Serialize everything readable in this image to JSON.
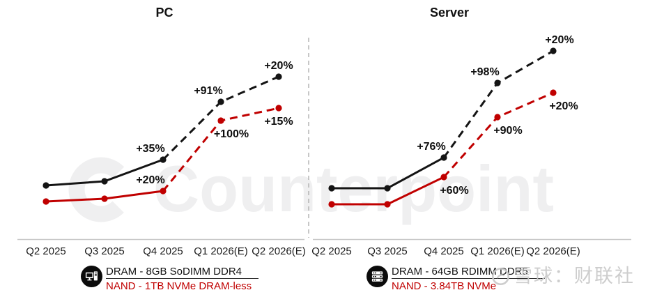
{
  "colors": {
    "dram_black": "#141414",
    "nand_red": "#c00000",
    "annotation_text": "#0e0e0e",
    "axis_line": "#c8c8c8",
    "divider_dash": "#a9a9a9",
    "watermark_center": "#efeff0",
    "watermark_bottom_right": "#c9c9c9"
  },
  "chart_data": [
    {
      "type": "line",
      "title": "PC",
      "x_labels": [
        "Q2 2025",
        "Q3 2025",
        "Q4 2025",
        "Q1 2026(E)",
        "Q2 2026(E)"
      ],
      "solid_until_index": 2,
      "estimate_quarters": [
        "Q1 2026(E)",
        "Q2 2026(E)"
      ],
      "legend_note": "grid off, no y-axis; levels are relative price-index heights read from the figure",
      "series": [
        {
          "name": "DRAM - 8GB SoDIMM DDR4",
          "color": "#141414",
          "levels": [
            77,
            83,
            114,
            197,
            233
          ],
          "qoq_change_labels": [
            null,
            null,
            "+35%",
            "+91%",
            "+20%"
          ],
          "label_placements": [
            null,
            null,
            "above-left",
            "above-left",
            "above"
          ]
        },
        {
          "name": "NAND - 1TB NVMe DRAM-less",
          "color": "#c00000",
          "levels": [
            54,
            58,
            69,
            170,
            188
          ],
          "qoq_change_labels": [
            null,
            null,
            "+20%",
            "+100%",
            "+15%"
          ],
          "label_placements": [
            null,
            null,
            "above-left",
            "below-right",
            "below"
          ]
        }
      ]
    },
    {
      "type": "line",
      "title": "Server",
      "x_labels": [
        "Q2 2025",
        "Q3 2025",
        "Q4 2025",
        "Q1 2026(E)",
        "Q2 2026(E)"
      ],
      "solid_until_index": 2,
      "estimate_quarters": [
        "Q1 2026(E)",
        "Q2 2026(E)"
      ],
      "series": [
        {
          "name": "DRAM - 64GB RDIMM DDR5",
          "color": "#141414",
          "levels": [
            73,
            73,
            117,
            224,
            270
          ],
          "qoq_change_labels": [
            null,
            null,
            "+76%",
            "+98%",
            "+20%"
          ],
          "label_placements": [
            null,
            null,
            "above-left",
            "above-left",
            "above-right"
          ]
        },
        {
          "name": "NAND - 3.84TB NVMe",
          "color": "#c00000",
          "levels": [
            50,
            50,
            89,
            175,
            210
          ],
          "qoq_change_labels": [
            null,
            null,
            "+60%",
            "+90%",
            "+20%"
          ],
          "label_placements": [
            null,
            null,
            "below-right",
            "below-right",
            "below-right"
          ]
        }
      ]
    }
  ],
  "watermarks": {
    "center_brand": "Counterpoint",
    "bottom_right": "雪球：财联社"
  }
}
